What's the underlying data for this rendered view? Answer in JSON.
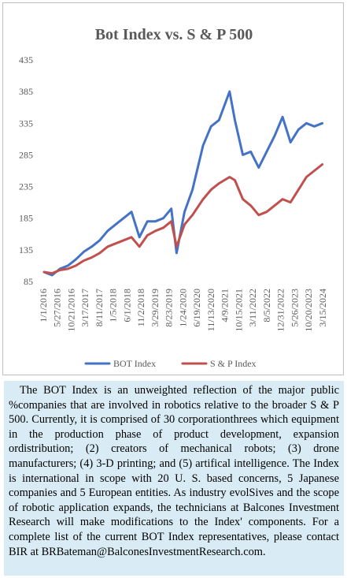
{
  "colors": {
    "bot": "#4472c4",
    "sp": "#c0504d",
    "caption_bg": "#d9ecf5",
    "axis_text": "#595959"
  },
  "chart_data": {
    "type": "line",
    "title": "Bot Index vs. S & P 500",
    "xlabel": "",
    "ylabel": "",
    "ylim": [
      85,
      435
    ],
    "yticks": [
      85,
      135,
      185,
      235,
      285,
      335,
      385,
      435
    ],
    "grid": false,
    "legend_position": "bottom",
    "x_tick_labels": [
      "1/1/2016",
      "5/27/2016",
      "10/21/2016",
      "3/17/2017",
      "8/11/2017",
      "1/5/2018",
      "6/1/2018",
      "11/2/2018",
      "3/29/2019",
      "8/23/2019",
      "1/24/2020",
      "6/19/2020",
      "11/13/2020",
      "4/9/2021",
      "10/15/2021",
      "3/11/2022",
      "8/5/2022",
      "12/31/2022",
      "5/26/2023",
      "10/20/2023",
      "3/15/2024"
    ],
    "x": [
      "2016-01",
      "2016-04",
      "2016-07",
      "2016-10",
      "2017-01",
      "2017-04",
      "2017-07",
      "2017-10",
      "2018-01",
      "2018-04",
      "2018-07",
      "2018-10",
      "2019-01",
      "2019-04",
      "2019-07",
      "2019-10",
      "2020-01",
      "2020-03",
      "2020-06",
      "2020-09",
      "2021-01",
      "2021-04",
      "2021-07",
      "2021-11",
      "2022-01",
      "2022-04",
      "2022-07",
      "2022-10",
      "2023-01",
      "2023-04",
      "2023-07",
      "2023-10",
      "2024-01",
      "2024-04",
      "2024-07",
      "2024-10"
    ],
    "series": [
      {
        "name": "BOT Index",
        "values": [
          100,
          95,
          105,
          110,
          120,
          132,
          140,
          150,
          165,
          175,
          185,
          195,
          155,
          180,
          180,
          185,
          200,
          130,
          195,
          230,
          300,
          330,
          340,
          385,
          340,
          285,
          290,
          265,
          290,
          315,
          345,
          305,
          325,
          335,
          330,
          335
        ]
      },
      {
        "name": "S & P Index",
        "values": [
          100,
          98,
          103,
          105,
          110,
          118,
          123,
          130,
          140,
          145,
          150,
          155,
          140,
          158,
          165,
          170,
          180,
          140,
          175,
          190,
          215,
          230,
          240,
          250,
          245,
          215,
          205,
          190,
          195,
          205,
          215,
          210,
          230,
          250,
          260,
          270
        ]
      }
    ]
  },
  "caption": {
    "text": "The BOT Index is an unweighted reflection of the major public %companies that are involved in robotics relative to the broader S & P 500. Currently, it is comprised of 30 corporationthrees which equipment in the production phase of product development, expansion ordistribution; (2) creators of mechanical robots; (3) drone manufacturers; (4) 3-D printing; and (5) artifical intelligence. The Index is international in scope with 20 U. S. based concerns, 5 Japanese companies and 5 European entities. As industry evolSives and the scope of robotic application expands, the technicians at Balcones Investment Research will make modifications to the Index' components. For a  complete list of the current BOT Index representatives, please contact BIR at BRBateman@BalconesInvestmentResearch.com."
  }
}
